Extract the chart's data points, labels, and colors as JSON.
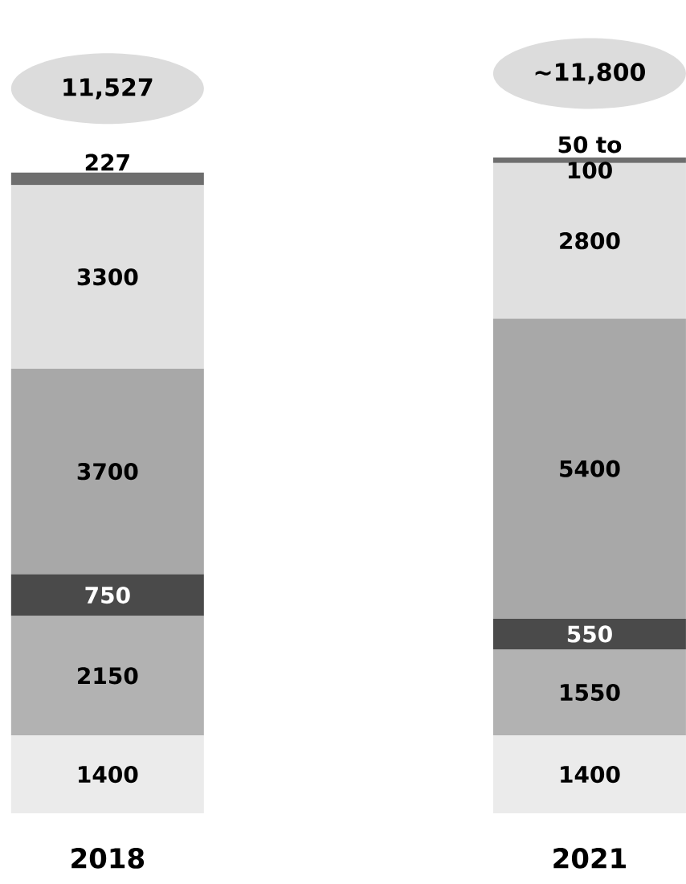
{
  "chart_data": {
    "type": "bar",
    "stacked": true,
    "categories": [
      "2018",
      "2021"
    ],
    "series": [
      {
        "color": "#ebebeb",
        "values": [
          1400,
          1400
        ]
      },
      {
        "color": "#b2b2b2",
        "values": [
          2150,
          1550
        ]
      },
      {
        "color": "#4a4a4a",
        "values": [
          750,
          550
        ]
      },
      {
        "color": "#a8a8a8",
        "values": [
          3700,
          5400
        ]
      },
      {
        "color": "#e0e0e0",
        "values": [
          3300,
          2800
        ]
      },
      {
        "color": "#6e6e6e",
        "values": [
          227,
          100
        ],
        "value_labels": [
          "227",
          null
        ]
      }
    ],
    "annotations": [
      {
        "text": "50 to 100",
        "x": "2021",
        "y": 11800
      }
    ],
    "data_labels": true,
    "totals": [
      "11,527",
      "~11,800"
    ]
  }
}
